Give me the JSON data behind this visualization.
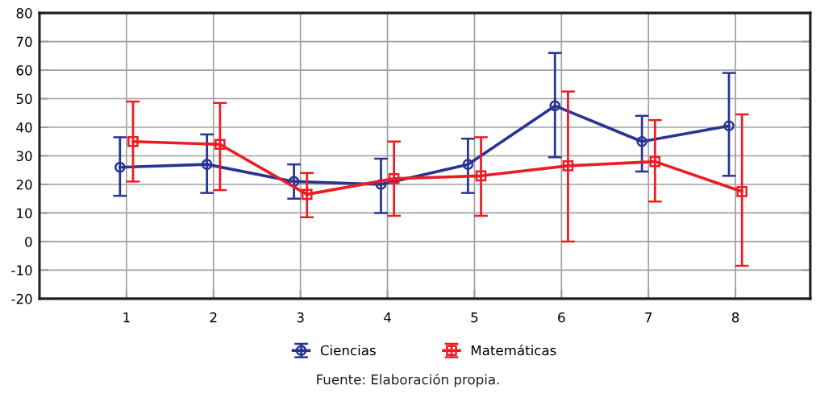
{
  "chart_data": {
    "type": "line",
    "categories": [
      "1",
      "2",
      "3",
      "4",
      "5",
      "6",
      "7",
      "8"
    ],
    "series": [
      {
        "name": "Ciencias",
        "color": "#283593",
        "marker": "circle",
        "values": [
          26,
          27,
          21,
          20,
          27,
          47.5,
          35,
          40.5
        ],
        "errors": [
          [
            16,
            36.5
          ],
          [
            17,
            37.5
          ],
          [
            15,
            27
          ],
          [
            10,
            29
          ],
          [
            17,
            36
          ],
          [
            29.5,
            66
          ],
          [
            24.5,
            44
          ],
          [
            23,
            59
          ]
        ]
      },
      {
        "name": "Matemáticas",
        "color": "#ed1c24",
        "marker": "square",
        "values": [
          35,
          34,
          16.5,
          22,
          23,
          26.5,
          28,
          17.5
        ],
        "errors": [
          [
            21,
            49
          ],
          [
            18,
            48.5
          ],
          [
            8.5,
            24
          ],
          [
            9,
            35
          ],
          [
            9,
            36.5
          ],
          [
            0,
            52.5
          ],
          [
            14,
            42.5
          ],
          [
            -8.5,
            44.5
          ]
        ]
      }
    ],
    "ylim": [
      -20,
      80
    ],
    "yticks": [
      -20,
      -10,
      0,
      10,
      20,
      30,
      40,
      50,
      60,
      70,
      80
    ],
    "grid": true,
    "legend": "bottom",
    "line_style": "solid",
    "annotations": [
      "Fuente: Elaboración propia."
    ]
  }
}
